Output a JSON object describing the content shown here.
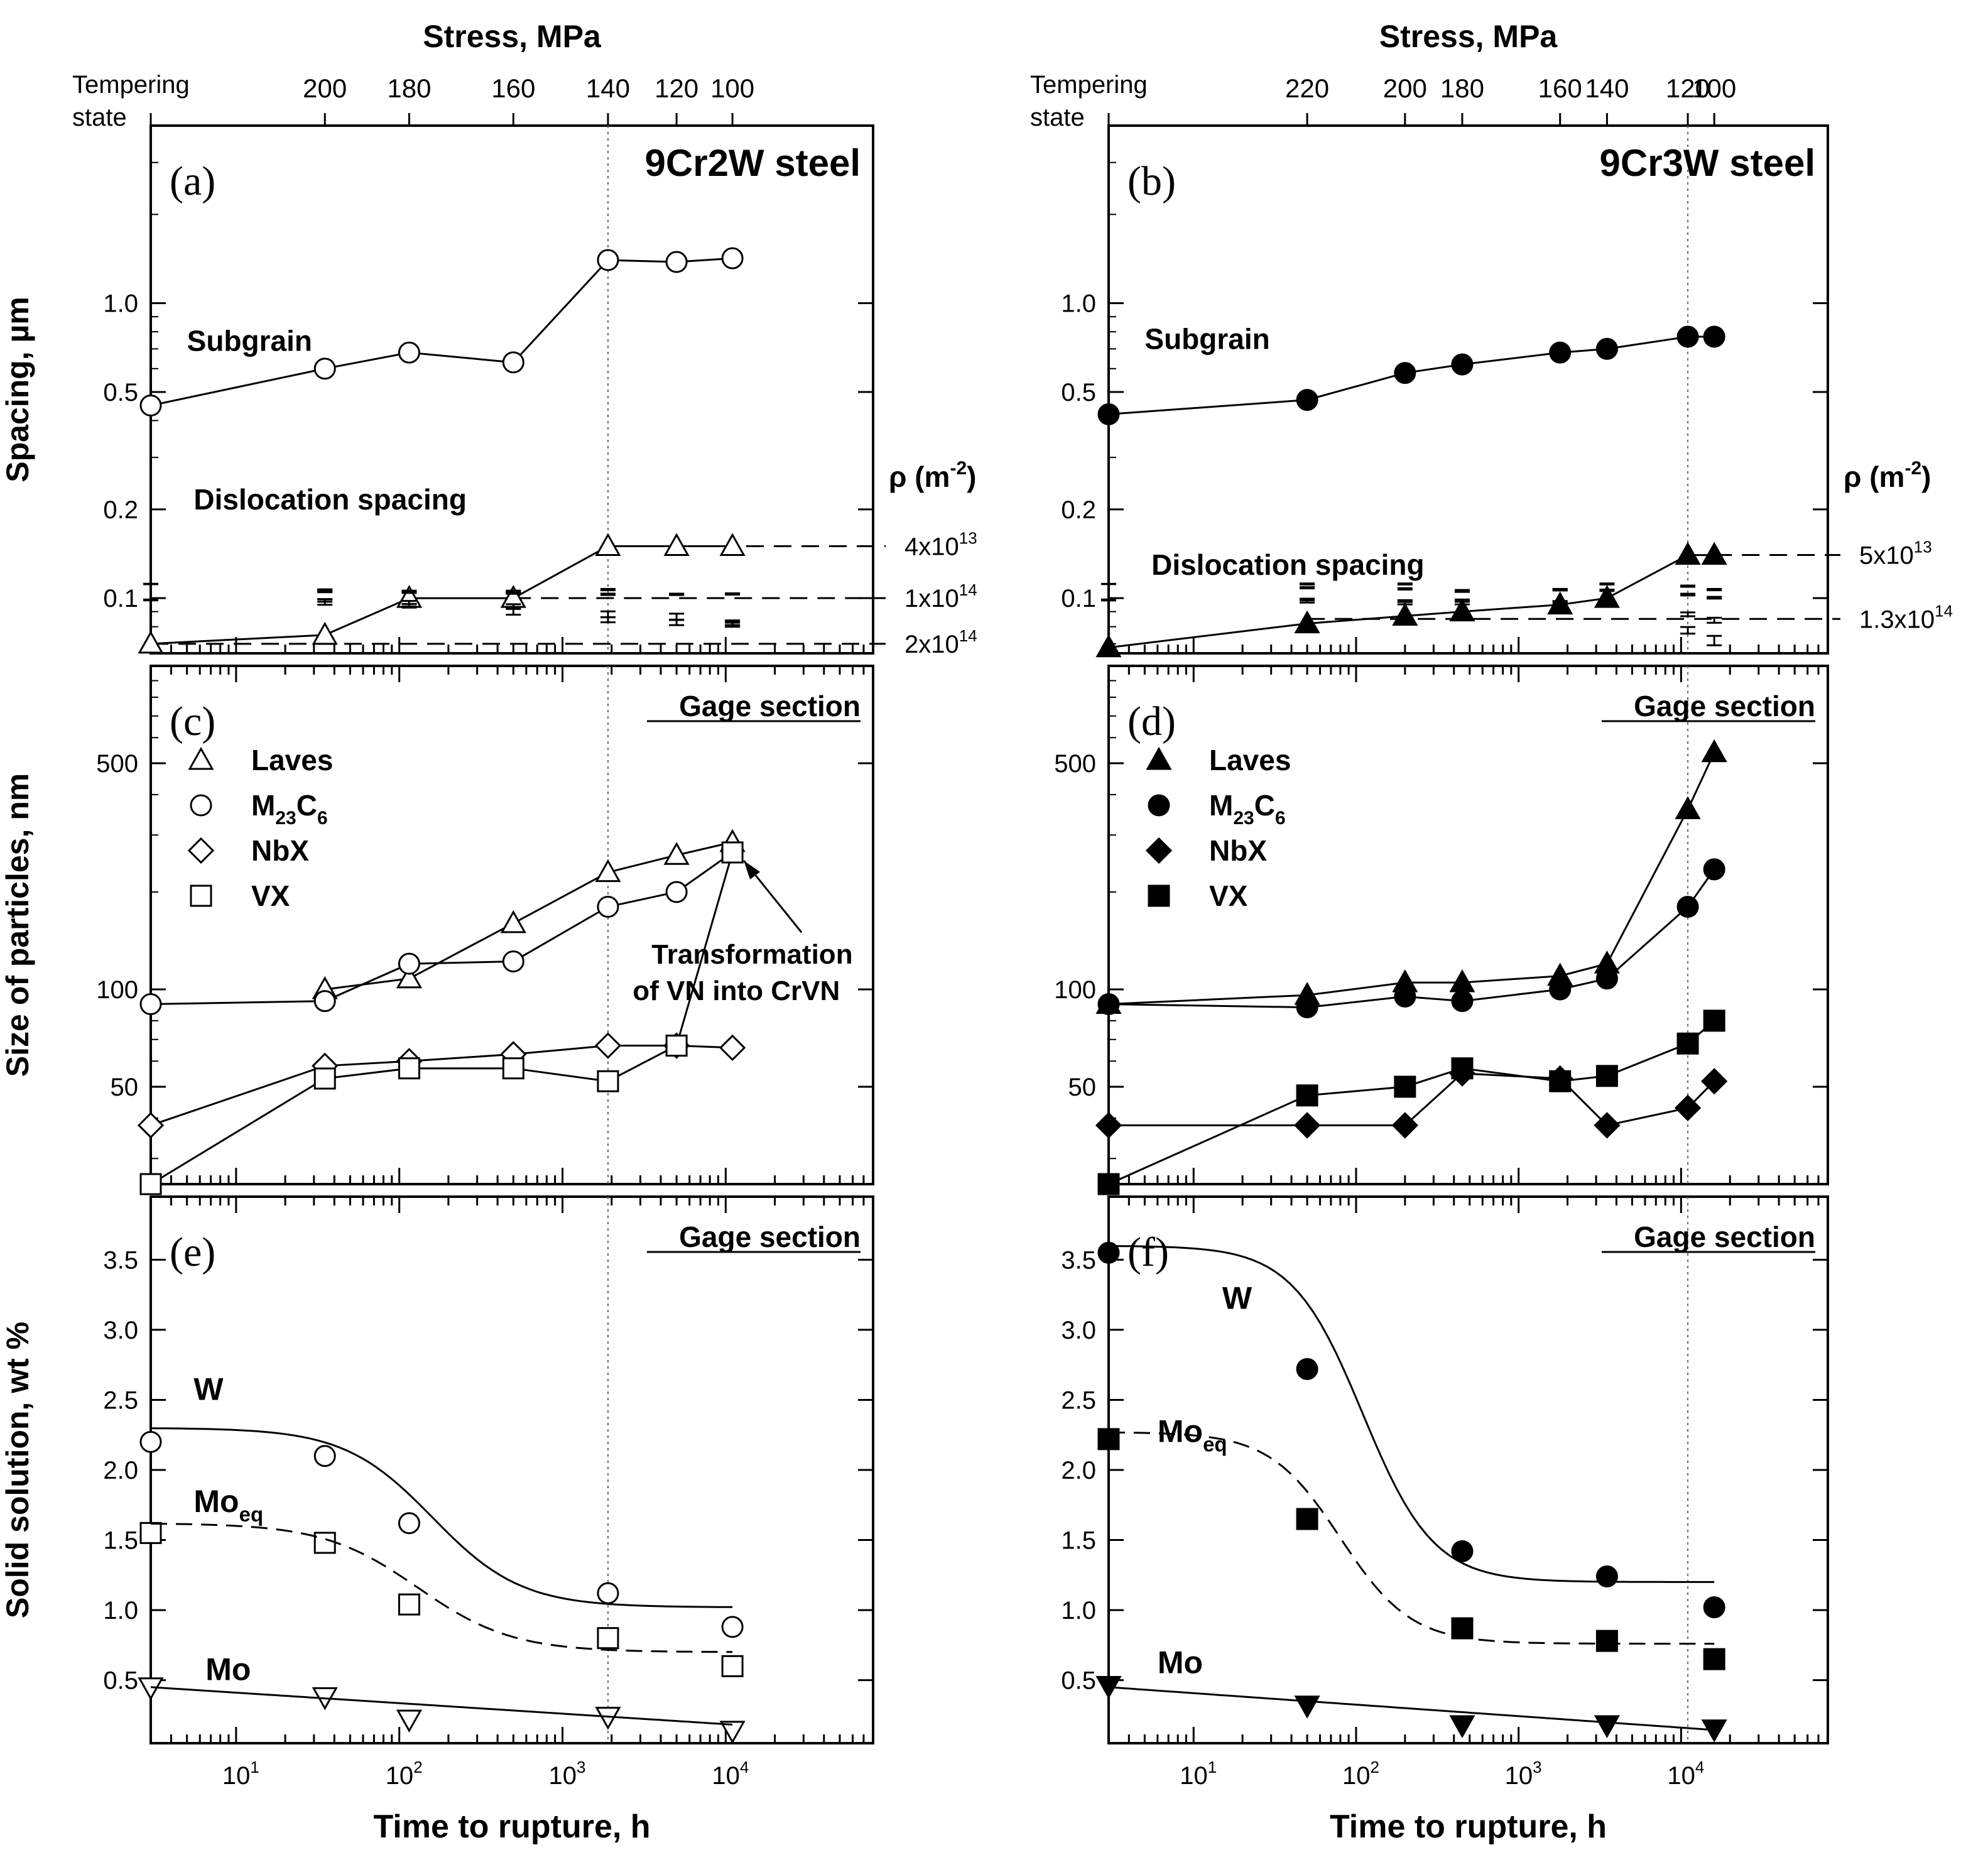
{
  "chart_data": [
    {
      "id": "a",
      "type": "scatter",
      "panel_label": "(a)",
      "title": "9Cr2W steel",
      "ylabel": "Spacing, µm",
      "yscale": "log",
      "yticks": [
        {
          "v": 0.1,
          "t": "0.1"
        },
        {
          "v": 0.2,
          "t": "0.2"
        },
        {
          "v": 0.5,
          "t": "0.5"
        },
        {
          "v": 1.0,
          "t": "1.0"
        }
      ],
      "top_axis": {
        "title": "Stress, MPa",
        "corner_label": [
          "Tempering",
          "state"
        ],
        "ticks": [
          {
            "x": 35,
            "t": "200"
          },
          {
            "x": 115,
            "t": "180"
          },
          {
            "x": 500,
            "t": "160"
          },
          {
            "x": 1900,
            "t": "140"
          },
          {
            "x": 5000,
            "t": "120"
          },
          {
            "x": 11000,
            "t": "100"
          }
        ]
      },
      "rho_label": "ρ (m",
      "rho_exp": "-2",
      "series": [
        {
          "name": "Subgrain",
          "marker": "circle-open",
          "line": "solid",
          "x": [
            3,
            35,
            115,
            500,
            1900,
            5000,
            11000
          ],
          "y": [
            0.45,
            0.6,
            0.68,
            0.63,
            1.4,
            1.38,
            1.42
          ],
          "err": [
            0.03,
            0.06,
            0.07,
            0.07,
            0.2,
            0.2,
            0.22
          ]
        },
        {
          "name": "Dislocation spacing",
          "marker": "triangle-up-open",
          "line": "solid",
          "x": [
            3,
            35,
            115,
            500,
            1900,
            5000,
            11000
          ],
          "y": [
            0.07,
            0.075,
            0.1,
            0.1,
            0.15,
            0.15,
            0.15
          ],
          "err": [
            0.005,
            0.015,
            0.02,
            0.025,
            0.03,
            0.03,
            0.07
          ]
        }
      ],
      "series_labels": [
        {
          "t": "Subgrain",
          "x": 5,
          "y": 0.69
        },
        {
          "t": "Dislocation spacing",
          "x": 5.5,
          "y": 0.2
        }
      ],
      "hlines": [
        {
          "y": 0.15,
          "x0": 1900,
          "label": "4x10",
          "exp": "13"
        },
        {
          "y": 0.1,
          "x0": 500,
          "label": "1x10",
          "exp": "14"
        },
        {
          "y": 0.07,
          "x0": 3,
          "label": "2x10",
          "exp": "14"
        }
      ]
    },
    {
      "id": "b",
      "type": "scatter",
      "panel_label": "(b)",
      "title": "9Cr3W steel",
      "yscale": "log",
      "yticks": [
        {
          "v": 0.1,
          "t": "0.1"
        },
        {
          "v": 0.2,
          "t": "0.2"
        },
        {
          "v": 0.5,
          "t": "0.5"
        },
        {
          "v": 1.0,
          "t": "1.0"
        }
      ],
      "top_axis": {
        "title": "Stress, MPa",
        "corner_label": [
          "Tempering",
          "state"
        ],
        "ticks": [
          {
            "x": 50,
            "t": "220"
          },
          {
            "x": 200,
            "t": "200"
          },
          {
            "x": 450,
            "t": "180"
          },
          {
            "x": 1800,
            "t": "160"
          },
          {
            "x": 3500,
            "t": "140"
          },
          {
            "x": 11000,
            "t": "120"
          },
          {
            "x": 16000,
            "t": "100"
          }
        ]
      },
      "rho_label": "ρ (m",
      "rho_exp": "-2",
      "series": [
        {
          "name": "Subgrain",
          "marker": "circle-filled",
          "line": "solid",
          "x": [
            3,
            50,
            200,
            450,
            1800,
            3500,
            11000,
            16000
          ],
          "y": [
            0.42,
            0.47,
            0.58,
            0.62,
            0.68,
            0.7,
            0.77,
            0.77
          ],
          "err": [
            0.03,
            0.04,
            0.05,
            0.06,
            0.06,
            0.06,
            0.05,
            0.05
          ]
        },
        {
          "name": "Dislocation spacing",
          "marker": "triangle-up-filled",
          "line": "solid",
          "x": [
            3,
            50,
            200,
            450,
            1800,
            3500,
            11000,
            16000
          ],
          "y": [
            0.068,
            0.082,
            0.087,
            0.09,
            0.095,
            0.1,
            0.14,
            0.14
          ],
          "err": [
            0.004,
            0.012,
            0.015,
            0.02,
            0.025,
            0.028,
            0.04,
            0.07
          ]
        }
      ],
      "series_labels": [
        {
          "t": "Subgrain",
          "x": 5,
          "y": 0.7
        },
        {
          "t": "Dislocation spacing",
          "x": 5.5,
          "y": 0.12
        }
      ],
      "hlines": [
        {
          "y": 0.14,
          "x0": 16000,
          "label": "5x10",
          "exp": "13"
        },
        {
          "y": 0.085,
          "x0": 50,
          "label": "1.3x10",
          "exp": "14"
        }
      ]
    },
    {
      "id": "c",
      "type": "scatter",
      "panel_label": "(c)",
      "section_label": "Gage section",
      "ylabel": "Size of particles, nm",
      "yscale": "log",
      "yticks": [
        {
          "v": 50,
          "t": "50"
        },
        {
          "v": 100,
          "t": "100"
        },
        {
          "v": 500,
          "t": "500"
        }
      ],
      "legend": [
        {
          "name": "Laves",
          "marker": "triangle-up-open"
        },
        {
          "name": "M",
          "sub": "23",
          "name2": "C",
          "sub2": "6",
          "marker": "circle-open"
        },
        {
          "name": "NbX",
          "marker": "diamond-open"
        },
        {
          "name": "VX",
          "marker": "square-open"
        }
      ],
      "annotation": [
        "Transformation",
        "of VN into CrVN"
      ],
      "series": [
        {
          "name": "Laves",
          "marker": "triangle-up-open",
          "x": [
            35,
            115,
            500,
            1900,
            5000,
            11000
          ],
          "y": [
            100,
            108,
            160,
            230,
            260,
            285
          ],
          "err": [
            30,
            30,
            30,
            25,
            25,
            20
          ]
        },
        {
          "name": "M23C6",
          "marker": "circle-open",
          "x": [
            3,
            35,
            115,
            500,
            1900,
            5000,
            11000
          ],
          "y": [
            90,
            92,
            120,
            122,
            180,
            200,
            265
          ],
          "err": [
            5,
            15,
            20,
            20,
            30,
            30,
            25
          ]
        },
        {
          "name": "NbX",
          "marker": "diamond-open",
          "x": [
            3,
            35,
            115,
            500,
            1900,
            5000,
            11000
          ],
          "y": [
            38,
            58,
            60,
            63,
            67,
            67,
            66
          ],
          "err": [
            3,
            8,
            8,
            8,
            8,
            8,
            8
          ]
        },
        {
          "name": "VX",
          "marker": "square-open",
          "x": [
            3,
            35,
            115,
            500,
            1900,
            5000,
            11000
          ],
          "y": [
            25,
            53,
            57,
            57,
            52,
            67,
            265
          ],
          "err": [
            0,
            8,
            8,
            8,
            8,
            8,
            20
          ]
        }
      ]
    },
    {
      "id": "d",
      "type": "scatter",
      "panel_label": "(d)",
      "section_label": "Gage section",
      "yscale": "log",
      "yticks": [
        {
          "v": 50,
          "t": "50"
        },
        {
          "v": 100,
          "t": "100"
        },
        {
          "v": 500,
          "t": "500"
        }
      ],
      "legend": [
        {
          "name": "Laves",
          "marker": "triangle-up-filled"
        },
        {
          "name": "M",
          "sub": "23",
          "name2": "C",
          "sub2": "6",
          "marker": "circle-filled"
        },
        {
          "name": "NbX",
          "marker": "diamond-filled"
        },
        {
          "name": "VX",
          "marker": "square-filled"
        }
      ],
      "series": [
        {
          "name": "Laves",
          "marker": "triangle-up-filled",
          "x": [
            3,
            50,
            200,
            450,
            1800,
            3500,
            11000,
            16000
          ],
          "y": [
            90,
            96,
            105,
            105,
            110,
            120,
            360,
            540
          ],
          "err": [
            5,
            15,
            15,
            15,
            15,
            12,
            30,
            40
          ]
        },
        {
          "name": "M23C6",
          "marker": "circle-filled",
          "x": [
            3,
            50,
            200,
            450,
            1800,
            3500,
            11000,
            16000
          ],
          "y": [
            90,
            88,
            95,
            92,
            100,
            108,
            180,
            235
          ],
          "err": [
            5,
            10,
            10,
            10,
            12,
            12,
            20,
            25
          ]
        },
        {
          "name": "NbX",
          "marker": "diamond-filled",
          "x": [
            3,
            50,
            200,
            450,
            1800,
            3500,
            11000,
            16000
          ],
          "y": [
            38,
            38,
            38,
            55,
            53,
            38,
            43,
            52
          ],
          "err": [
            2,
            7,
            7,
            8,
            7,
            7,
            8,
            8
          ]
        },
        {
          "name": "VX",
          "marker": "square-filled",
          "x": [
            3,
            50,
            200,
            450,
            1800,
            3500,
            11000,
            16000
          ],
          "y": [
            25,
            47,
            50,
            57,
            52,
            54,
            68,
            80
          ],
          "err": [
            0,
            8,
            8,
            8,
            8,
            8,
            10,
            10
          ]
        }
      ]
    },
    {
      "id": "e",
      "type": "scatter",
      "panel_label": "(e)",
      "section_label": "Gage section",
      "ylabel": "Solid solution, wt %",
      "yscale": "linear",
      "xlabel": "Time to rupture, h",
      "yticks": [
        {
          "v": 0.5,
          "t": "0.5"
        },
        {
          "v": 1.0,
          "t": "1.0"
        },
        {
          "v": 1.5,
          "t": "1.5"
        },
        {
          "v": 2.0,
          "t": "2.0"
        },
        {
          "v": 2.5,
          "t": "2.5"
        },
        {
          "v": 3.0,
          "t": "3.0"
        },
        {
          "v": 3.5,
          "t": "3.5"
        }
      ],
      "xticks": [
        {
          "v": 10,
          "base": "10",
          "exp": "1"
        },
        {
          "v": 100,
          "base": "10",
          "exp": "2"
        },
        {
          "v": 1000,
          "base": "10",
          "exp": "3"
        },
        {
          "v": 10000,
          "base": "10",
          "exp": "4"
        }
      ],
      "series": [
        {
          "name": "W",
          "marker": "circle-open",
          "x": [
            3,
            35,
            115,
            1900,
            11000
          ],
          "y": [
            2.2,
            2.1,
            1.62,
            1.12,
            0.88
          ],
          "err": [
            0,
            0.2,
            0.1,
            0.1,
            0.05
          ]
        },
        {
          "name": "Moeq",
          "marker": "square-open",
          "x": [
            3,
            35,
            115,
            1900,
            11000
          ],
          "y": [
            1.55,
            1.48,
            1.04,
            0.8,
            0.6
          ],
          "err": [
            0.1,
            0.15,
            0.1,
            0.08,
            0.05
          ]
        },
        {
          "name": "Mo",
          "marker": "triangle-down-open",
          "x": [
            3,
            35,
            115,
            1900,
            11000
          ],
          "y": [
            0.45,
            0.38,
            0.22,
            0.24,
            0.14
          ],
          "err": [
            0.04,
            0.03,
            0.02,
            0.02,
            0.02
          ]
        }
      ],
      "labels": [
        {
          "t": "W",
          "x": 5.5,
          "y": 2.5
        },
        {
          "t": "Mo",
          "sub": "eq",
          "x": 5.5,
          "y": 1.7
        },
        {
          "t": "Mo",
          "x": 6.5,
          "y": 0.5
        }
      ]
    },
    {
      "id": "f",
      "type": "scatter",
      "panel_label": "(f)",
      "section_label": "Gage section",
      "yscale": "linear",
      "xlabel": "Time to rupture, h",
      "yticks": [
        {
          "v": 0.5,
          "t": "0.5"
        },
        {
          "v": 1.0,
          "t": "1.0"
        },
        {
          "v": 1.5,
          "t": "1.5"
        },
        {
          "v": 2.0,
          "t": "2.0"
        },
        {
          "v": 2.5,
          "t": "2.5"
        },
        {
          "v": 3.0,
          "t": "3.0"
        },
        {
          "v": 3.5,
          "t": "3.5"
        }
      ],
      "xticks": [
        {
          "v": 10,
          "base": "10",
          "exp": "1"
        },
        {
          "v": 100,
          "base": "10",
          "exp": "2"
        },
        {
          "v": 1000,
          "base": "10",
          "exp": "3"
        },
        {
          "v": 10000,
          "base": "10",
          "exp": "4"
        }
      ],
      "series": [
        {
          "name": "W",
          "marker": "circle-filled",
          "x": [
            3,
            50,
            450,
            3500,
            16000
          ],
          "y": [
            3.55,
            2.72,
            1.42,
            1.24,
            1.02
          ],
          "err": [
            0,
            0.2,
            0.15,
            0.25,
            0.1
          ]
        },
        {
          "name": "Moeq",
          "marker": "square-filled",
          "x": [
            3,
            50,
            450,
            3500,
            16000
          ],
          "y": [
            2.22,
            1.65,
            0.87,
            0.78,
            0.65
          ],
          "err": [
            0,
            0.15,
            0.15,
            0.15,
            0.12
          ]
        },
        {
          "name": "Mo",
          "marker": "triangle-down-filled",
          "x": [
            3,
            50,
            450,
            3500,
            16000
          ],
          "y": [
            0.46,
            0.32,
            0.18,
            0.18,
            0.15
          ],
          "err": [
            0.03,
            0.03,
            0.03,
            0.03,
            0.03
          ]
        }
      ],
      "labels": [
        {
          "t": "W",
          "x": 15,
          "y": 3.15
        },
        {
          "t": "Mo",
          "sub": "eq",
          "x": 6,
          "y": 2.2
        },
        {
          "t": "Mo",
          "x": 6,
          "y": 0.55
        }
      ]
    }
  ]
}
